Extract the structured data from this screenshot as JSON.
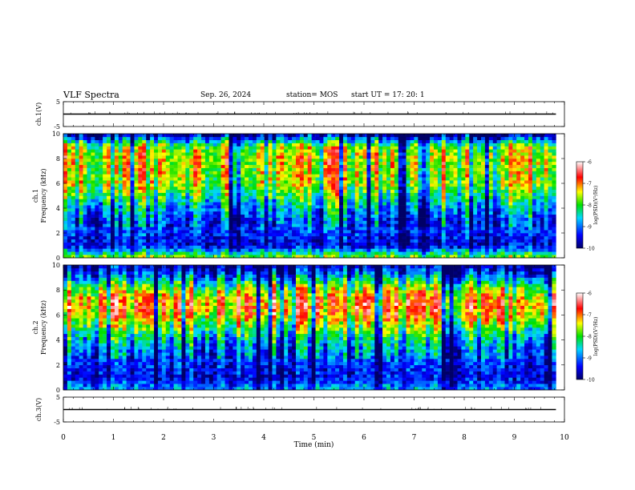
{
  "header": {
    "title": "VLF Spectra",
    "date": "Sep. 26, 2024",
    "station": "station= MOS",
    "start": "start  UT =   17: 20: 1"
  },
  "chart_data": [
    {
      "type": "line",
      "panel": "ch1-voltage",
      "ylabel": "ch.1(V)",
      "ylim": [
        -5,
        5
      ],
      "yticks": [
        "5",
        "-5"
      ],
      "x": [
        0,
        1,
        2,
        3,
        4,
        5,
        6,
        7,
        8,
        9,
        9.83
      ],
      "values": [
        0,
        0,
        0,
        0,
        0,
        0,
        0,
        0,
        0,
        0,
        0
      ]
    },
    {
      "type": "heatmap",
      "panel": "ch1-spectrogram",
      "ylabel_top": "ch.1",
      "ylabel": "Frequency  (kHz)",
      "ylim": [
        0,
        10
      ],
      "yticks": [
        "0",
        "2",
        "4",
        "6",
        "8",
        "10"
      ],
      "xlim": [
        0,
        9.83
      ],
      "intensity_profile_khz": [
        0,
        1,
        2,
        3,
        4,
        5,
        6,
        7,
        8,
        9,
        10
      ],
      "intensity_profile_logpsd": [
        -7.5,
        -9.5,
        -9.2,
        -9.0,
        -8.6,
        -8.0,
        -7.5,
        -7.4,
        -7.3,
        -7.6,
        -9.8
      ],
      "colorbar": {
        "label": "log(PSD)(V²/Hz)",
        "ticks": [
          "-6",
          "-7",
          "-8",
          "-9",
          "-10"
        ],
        "range": [
          -10,
          -6
        ]
      }
    },
    {
      "type": "heatmap",
      "panel": "ch2-spectrogram",
      "ylabel_top": "ch.2",
      "ylabel": "Frequency  (kHz)",
      "ylim": [
        0,
        10
      ],
      "yticks": [
        "0",
        "2",
        "4",
        "6",
        "8",
        "10"
      ],
      "xlim": [
        0,
        9.83
      ],
      "intensity_profile_khz": [
        0,
        1,
        2,
        3,
        4,
        5,
        6,
        7,
        8,
        9,
        10
      ],
      "intensity_profile_logpsd": [
        -8.8,
        -9.5,
        -9.3,
        -9.0,
        -8.6,
        -8.0,
        -7.2,
        -7.0,
        -7.6,
        -8.8,
        -9.9
      ],
      "colorbar": {
        "label": "log(PSD)(V²/Hz)",
        "ticks": [
          "-6",
          "-7",
          "-8",
          "-9",
          "-10"
        ],
        "range": [
          -10,
          -6
        ]
      }
    },
    {
      "type": "line",
      "panel": "ch3-voltage",
      "ylabel": "ch.3(V)",
      "ylim": [
        -5,
        5
      ],
      "yticks": [
        "5",
        "-5"
      ],
      "x": [
        0,
        1,
        2,
        3,
        4,
        5,
        6,
        7,
        8,
        9,
        9.83
      ],
      "values": [
        0,
        0,
        0,
        0,
        0,
        0,
        0,
        0,
        0,
        0,
        0
      ]
    }
  ],
  "time_axis": {
    "xlabel": "Time  (min)",
    "xlim": [
      0,
      10
    ],
    "ticks": [
      "0",
      "1",
      "2",
      "3",
      "4",
      "5",
      "6",
      "7",
      "8",
      "9",
      "10"
    ]
  }
}
